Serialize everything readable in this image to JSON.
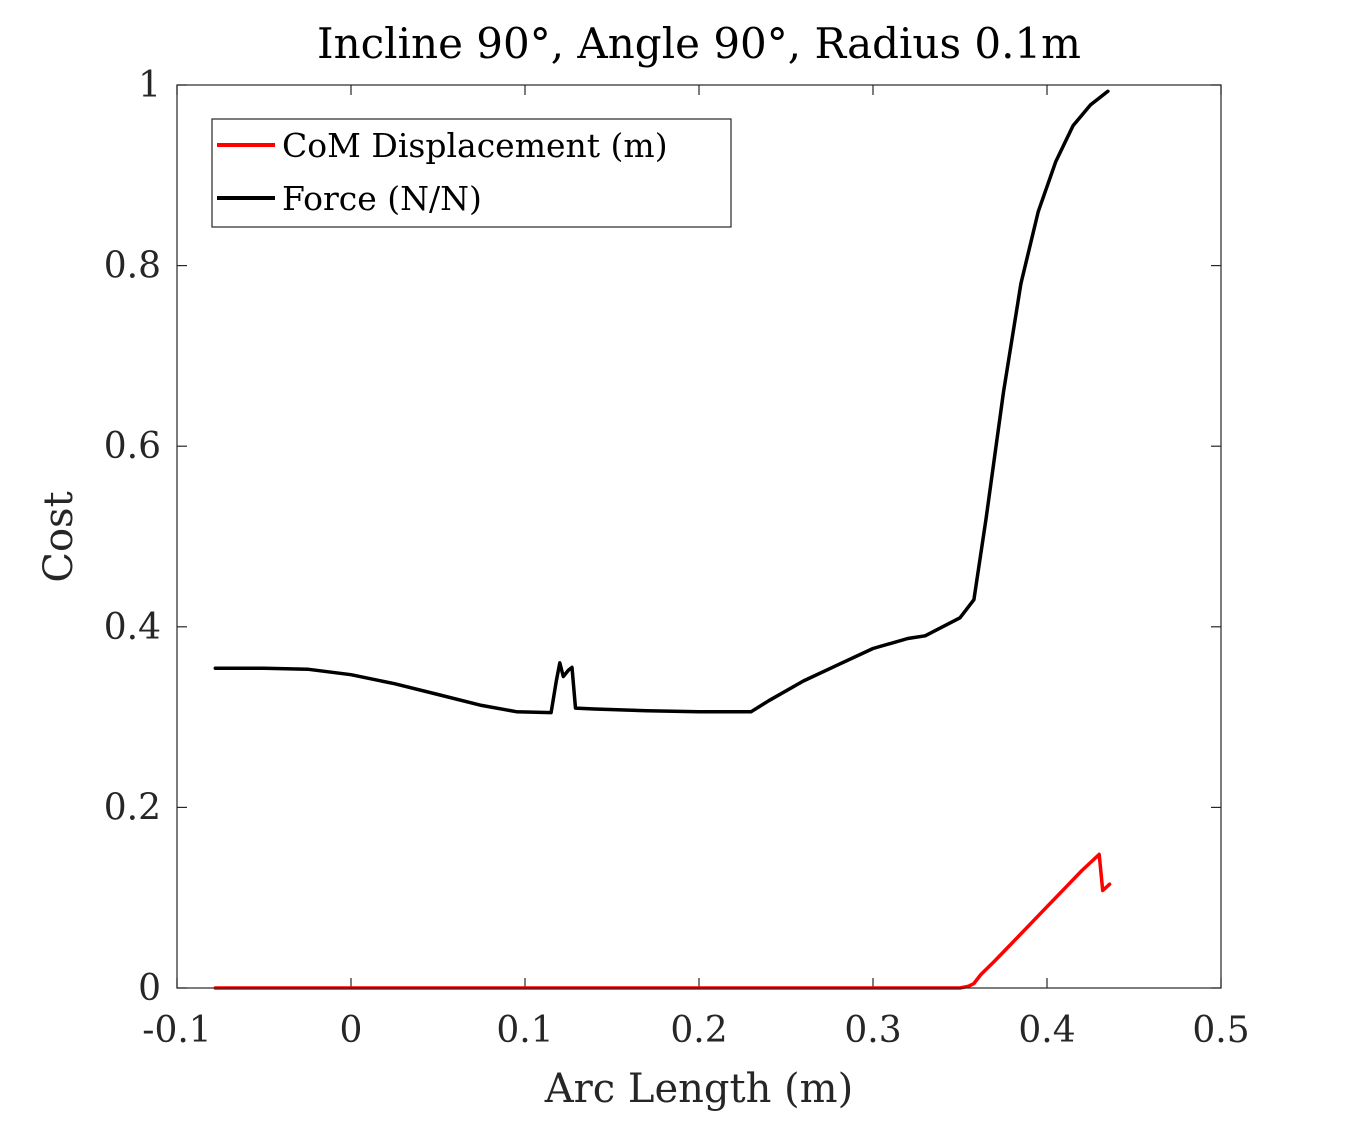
{
  "chart_data": {
    "type": "line",
    "title": "Incline 90°, Angle 90°, Radius 0.1m",
    "xlabel": "Arc Length (m)",
    "ylabel": "Cost",
    "xlim": [
      -0.1,
      0.5
    ],
    "ylim": [
      0,
      1
    ],
    "xticks": [
      -0.1,
      0,
      0.1,
      0.2,
      0.3,
      0.4,
      0.5
    ],
    "xtick_labels": [
      "-0.1",
      "0",
      "0.1",
      "0.2",
      "0.3",
      "0.4",
      "0.5"
    ],
    "yticks": [
      0,
      0.2,
      0.4,
      0.6,
      0.8,
      1
    ],
    "ytick_labels": [
      "0",
      "0.2",
      "0.4",
      "0.6",
      "0.8",
      "1"
    ],
    "grid": false,
    "legend_position": "top-left",
    "colors": {
      "com": "#ff0000",
      "force": "#000000",
      "axes": "#262626"
    },
    "series": [
      {
        "name": "CoM Displacement (m)",
        "color": "#ff0000",
        "points": [
          [
            -0.078,
            0
          ],
          [
            0.0,
            0
          ],
          [
            0.1,
            0
          ],
          [
            0.2,
            0
          ],
          [
            0.3,
            0
          ],
          [
            0.35,
            0
          ],
          [
            0.355,
            0.002
          ],
          [
            0.358,
            0.005
          ],
          [
            0.362,
            0.015
          ],
          [
            0.37,
            0.03
          ],
          [
            0.38,
            0.05
          ],
          [
            0.39,
            0.07
          ],
          [
            0.4,
            0.09
          ],
          [
            0.41,
            0.11
          ],
          [
            0.42,
            0.13
          ],
          [
            0.43,
            0.148
          ],
          [
            0.432,
            0.108
          ],
          [
            0.436,
            0.115
          ]
        ]
      },
      {
        "name": "Force (N/N)",
        "color": "#000000",
        "points": [
          [
            -0.078,
            0.354
          ],
          [
            -0.05,
            0.354
          ],
          [
            -0.025,
            0.353
          ],
          [
            0.0,
            0.347
          ],
          [
            0.025,
            0.337
          ],
          [
            0.05,
            0.325
          ],
          [
            0.075,
            0.313
          ],
          [
            0.095,
            0.306
          ],
          [
            0.115,
            0.305
          ],
          [
            0.118,
            0.34
          ],
          [
            0.12,
            0.36
          ],
          [
            0.122,
            0.345
          ],
          [
            0.125,
            0.352
          ],
          [
            0.127,
            0.355
          ],
          [
            0.129,
            0.31
          ],
          [
            0.14,
            0.309
          ],
          [
            0.17,
            0.307
          ],
          [
            0.2,
            0.306
          ],
          [
            0.23,
            0.306
          ],
          [
            0.24,
            0.318
          ],
          [
            0.26,
            0.34
          ],
          [
            0.28,
            0.358
          ],
          [
            0.3,
            0.376
          ],
          [
            0.32,
            0.387
          ],
          [
            0.33,
            0.39
          ],
          [
            0.35,
            0.41
          ],
          [
            0.358,
            0.43
          ],
          [
            0.365,
            0.52
          ],
          [
            0.375,
            0.66
          ],
          [
            0.385,
            0.78
          ],
          [
            0.395,
            0.86
          ],
          [
            0.405,
            0.915
          ],
          [
            0.415,
            0.955
          ],
          [
            0.425,
            0.978
          ],
          [
            0.435,
            0.993
          ]
        ]
      }
    ]
  }
}
